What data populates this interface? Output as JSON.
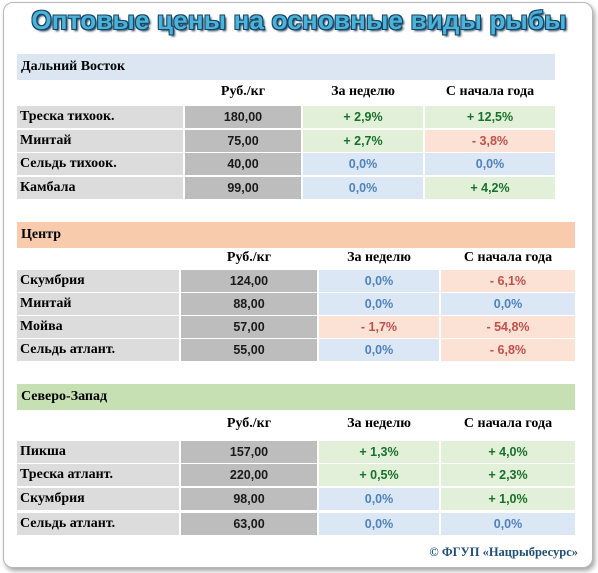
{
  "title": "Оптовые цены на основные виды рыбы",
  "columns": {
    "price": "Руб./кг",
    "week": "За неделю",
    "year": "С начала года"
  },
  "sections": [
    {
      "name": "Дальний Восток",
      "color": "#dce6f2",
      "rows": [
        {
          "name": "Треска тихоок.",
          "price": "180,00",
          "week": "+ 2,9%",
          "week_kind": "pos",
          "year": "+ 12,5%",
          "year_kind": "pos"
        },
        {
          "name": "Минтай",
          "price": "75,00",
          "week": "+ 2,7%",
          "week_kind": "pos",
          "year": "- 3,8%",
          "year_kind": "neg"
        },
        {
          "name": "Сельдь тихоок.",
          "price": "40,00",
          "week": "0,0%",
          "week_kind": "zer",
          "year": "0,0%",
          "year_kind": "zer"
        },
        {
          "name": "Камбала",
          "price": "99,00",
          "week": "0,0%",
          "week_kind": "zer",
          "year": "+ 4,2%",
          "year_kind": "pos"
        }
      ]
    },
    {
      "name": "Центр",
      "color": "#f9cbad",
      "rows": [
        {
          "name": "Скумбрия",
          "price": "124,00",
          "week": "0,0%",
          "week_kind": "zer",
          "year": "- 6,1%",
          "year_kind": "neg"
        },
        {
          "name": "Минтай",
          "price": "88,00",
          "week": "0,0%",
          "week_kind": "zer",
          "year": "0,0%",
          "year_kind": "zer"
        },
        {
          "name": "Мойва",
          "price": "57,00",
          "week": "- 1,7%",
          "week_kind": "neg",
          "year": "- 54,8%",
          "year_kind": "neg"
        },
        {
          "name": "Сельдь атлант.",
          "price": "55,00",
          "week": "0,0%",
          "week_kind": "zer",
          "year": "- 6,8%",
          "year_kind": "neg"
        }
      ]
    },
    {
      "name": "Северо-Запад",
      "color": "#c6e0b4",
      "rows": [
        {
          "name": "Пикша",
          "price": "157,00",
          "week": "+ 1,3%",
          "week_kind": "pos",
          "year": "+ 4,0%",
          "year_kind": "pos"
        },
        {
          "name": "Треска атлант.",
          "price": "220,00",
          "week": "+ 0,5%",
          "week_kind": "pos",
          "year": "+ 2,3%",
          "year_kind": "pos"
        },
        {
          "name": "Скумбрия",
          "price": "98,00",
          "week": "0,0%",
          "week_kind": "zer",
          "year": "+ 1,0%",
          "year_kind": "pos"
        },
        {
          "name": "Сельдь атлант.",
          "price": "63,00",
          "week": "0,0%",
          "week_kind": "zer",
          "year": "0,0%",
          "year_kind": "zer"
        }
      ]
    }
  ],
  "copyright": "© ФГУП «Нацрыбресурс»"
}
